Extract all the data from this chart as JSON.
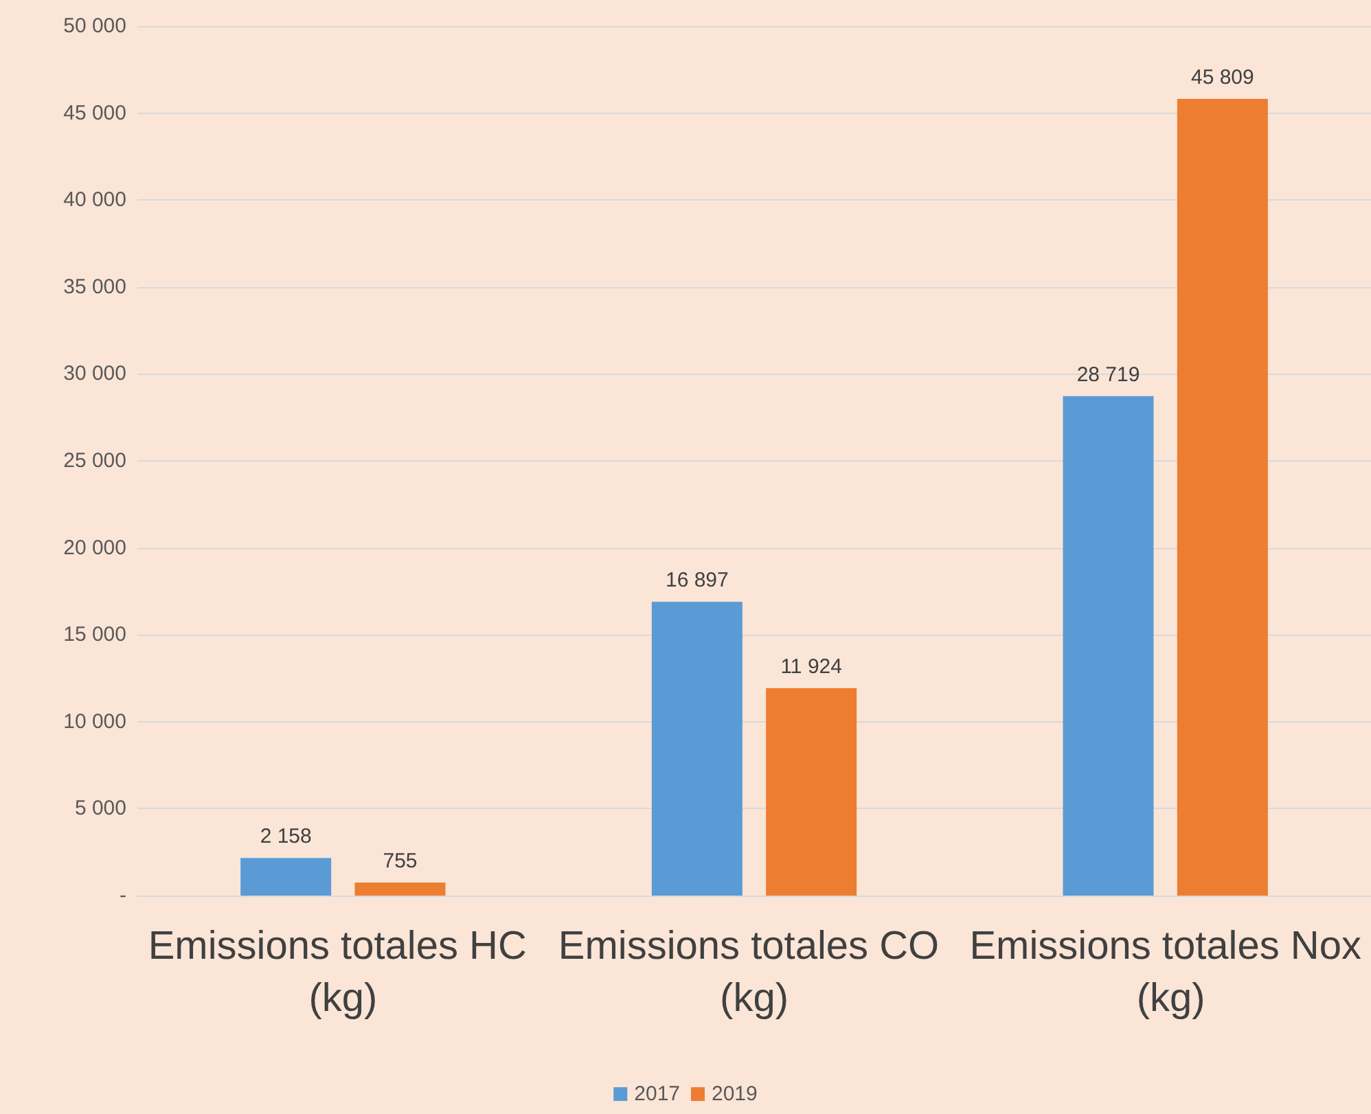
{
  "chart_data": {
    "type": "bar",
    "categories": [
      "Emissions totales HC (kg)",
      "Emissions totales CO (kg)",
      "Emissions totales Nox (kg)"
    ],
    "series": [
      {
        "name": "2017",
        "color": "#5b9bd5",
        "values": [
          2158,
          16897,
          28719
        ],
        "value_labels": [
          "2 158",
          "16 897",
          "28 719"
        ]
      },
      {
        "name": "2019",
        "color": "#ed7d31",
        "values": [
          755,
          11924,
          45809
        ],
        "value_labels": [
          "755",
          "11 924",
          "45 809"
        ]
      }
    ],
    "ylim": [
      0,
      50000
    ],
    "yticks": [
      {
        "value": 0,
        "label": "-"
      },
      {
        "value": 5000,
        "label": "5 000"
      },
      {
        "value": 10000,
        "label": "10 000"
      },
      {
        "value": 15000,
        "label": "15 000"
      },
      {
        "value": 20000,
        "label": "20 000"
      },
      {
        "value": 25000,
        "label": "25 000"
      },
      {
        "value": 30000,
        "label": "30 000"
      },
      {
        "value": 35000,
        "label": "35 000"
      },
      {
        "value": 40000,
        "label": "40 000"
      },
      {
        "value": 45000,
        "label": "45 000"
      },
      {
        "value": 50000,
        "label": "50 000"
      }
    ],
    "grid": "y",
    "legend": "bottom"
  }
}
